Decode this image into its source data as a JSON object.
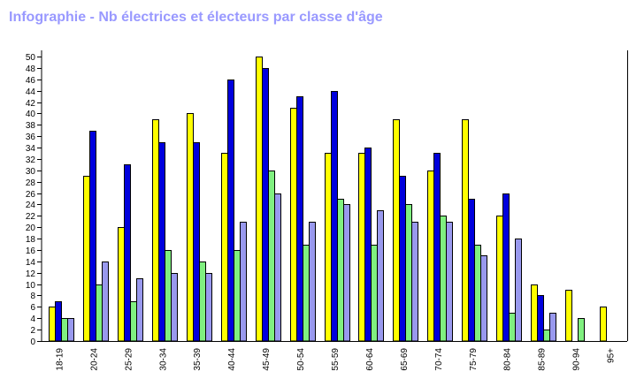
{
  "chart_data": {
    "type": "bar",
    "title": "Infographie - Nb électrices et électeurs par classe d'âge",
    "xlabel": "",
    "ylabel": "",
    "ylim": [
      0,
      51
    ],
    "yticks": [
      0,
      2,
      4,
      6,
      8,
      10,
      12,
      14,
      16,
      18,
      20,
      22,
      24,
      26,
      28,
      30,
      32,
      34,
      36,
      38,
      40,
      42,
      44,
      46,
      48,
      50
    ],
    "grid": false,
    "legend": "none",
    "categories": [
      "18-19",
      "20-24",
      "25-29",
      "30-34",
      "35-39",
      "40-44",
      "45-49",
      "50-54",
      "55-59",
      "60-64",
      "65-69",
      "70-74",
      "75-79",
      "80-84",
      "85-89",
      "90-94",
      "95+"
    ],
    "series": [
      {
        "color": "#ffff00",
        "values": [
          6,
          29,
          20,
          39,
          40,
          33,
          50,
          41,
          33,
          33,
          39,
          30,
          39,
          22,
          10,
          9,
          6
        ]
      },
      {
        "color": "#0000dd",
        "values": [
          7,
          37,
          31,
          35,
          35,
          46,
          48,
          43,
          44,
          34,
          29,
          33,
          25,
          26,
          8,
          0,
          0
        ]
      },
      {
        "color": "#80f080",
        "values": [
          4,
          10,
          7,
          16,
          14,
          16,
          30,
          17,
          25,
          17,
          24,
          22,
          17,
          5,
          2,
          4,
          0
        ]
      },
      {
        "color": "#9999ee",
        "values": [
          4,
          14,
          11,
          12,
          12,
          21,
          26,
          21,
          24,
          23,
          21,
          21,
          15,
          18,
          5,
          0,
          0
        ]
      }
    ]
  }
}
